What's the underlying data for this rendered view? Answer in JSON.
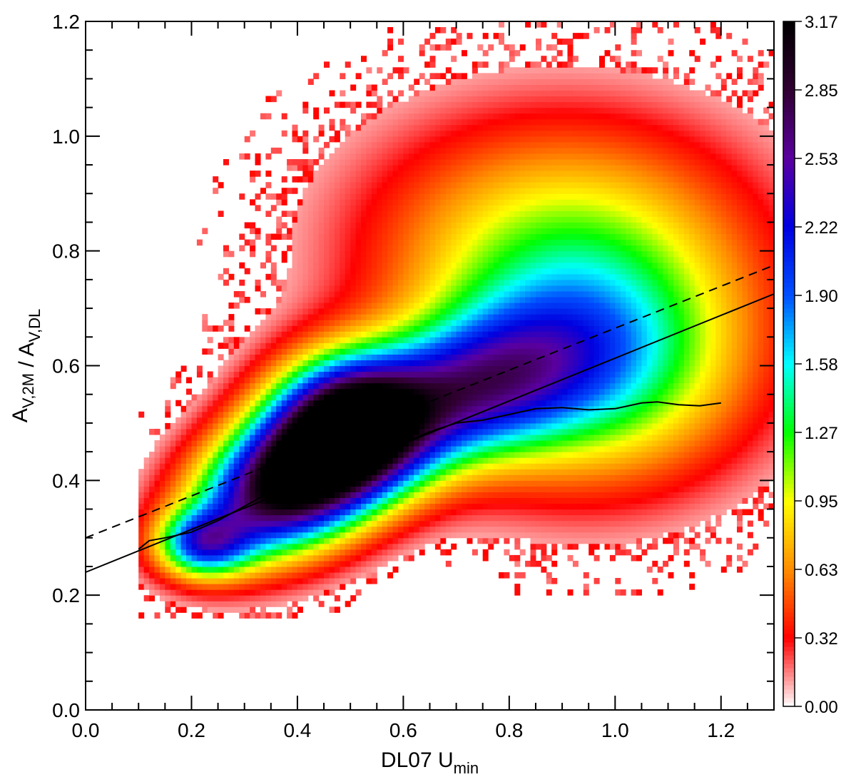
{
  "chart_data": {
    "type": "heatmap",
    "title": "",
    "xlabel": "DL07 U",
    "xlabel_sub": "min",
    "ylabel_parts": [
      {
        "text": "A",
        "sub": "V,2M"
      },
      {
        "text": " / A",
        "sub": "V,DL"
      }
    ],
    "xlim": [
      0.0,
      1.3
    ],
    "ylim": [
      0.0,
      1.2
    ],
    "x_ticks": [
      "0.0",
      "0.2",
      "0.4",
      "0.6",
      "0.8",
      "1.0",
      "1.2"
    ],
    "x_tick_values": [
      0.0,
      0.2,
      0.4,
      0.6,
      0.8,
      1.0,
      1.2
    ],
    "y_ticks": [
      "0.0",
      "0.2",
      "0.4",
      "0.6",
      "0.8",
      "1.0",
      "1.2"
    ],
    "y_tick_values": [
      0.0,
      0.2,
      0.4,
      0.6,
      0.8,
      1.0,
      1.2
    ],
    "colorbar": {
      "range": [
        0.0,
        3.17
      ],
      "tick_labels": [
        "0.00",
        "0.32",
        "0.63",
        "0.95",
        "1.27",
        "1.58",
        "1.90",
        "2.22",
        "2.53",
        "2.85",
        "3.17"
      ],
      "colormap": [
        "#ffffff",
        "#ff0000",
        "#ff8c00",
        "#ffff00",
        "#00ff00",
        "#00ffff",
        "#0050ff",
        "#0000e0",
        "#5a00a0",
        "#300030",
        "#000000"
      ]
    },
    "density_features": [
      {
        "x": 0.385,
        "y": 0.395,
        "sx": 0.12,
        "sy": 0.085,
        "peak": 3.17,
        "rho": 0.3
      },
      {
        "x": 0.5,
        "y": 0.5,
        "sx": 0.1,
        "sy": 0.08,
        "peak": 2.5,
        "rho": 0.0
      },
      {
        "x": 0.7,
        "y": 0.55,
        "sx": 0.16,
        "sy": 0.09,
        "peak": 1.8,
        "rho": 0.35
      },
      {
        "x": 0.95,
        "y": 0.6,
        "sx": 0.2,
        "sy": 0.14,
        "peak": 1.4,
        "rho": 0.0
      },
      {
        "x": 0.9,
        "y": 0.82,
        "sx": 0.25,
        "sy": 0.15,
        "peak": 0.9,
        "rho": 0.0
      },
      {
        "x": 0.22,
        "y": 0.29,
        "sx": 0.06,
        "sy": 0.04,
        "peak": 1.6,
        "rho": 0.0
      }
    ],
    "series": [
      {
        "style": "dashed",
        "x": [
          0.0,
          1.3
        ],
        "y": [
          0.3,
          0.775
        ]
      },
      {
        "style": "solid",
        "x": [
          0.0,
          1.3
        ],
        "y": [
          0.24,
          0.725
        ]
      },
      {
        "style": "solid",
        "x": [
          0.1,
          0.12,
          0.15,
          0.2,
          0.25,
          0.3,
          0.35,
          0.4,
          0.45,
          0.5,
          0.55,
          0.6,
          0.65,
          0.7,
          0.75,
          0.8,
          0.85,
          0.9,
          0.95,
          1.0,
          1.05,
          1.08,
          1.12,
          1.16,
          1.2
        ],
        "y": [
          0.28,
          0.295,
          0.3,
          0.31,
          0.33,
          0.355,
          0.38,
          0.4,
          0.42,
          0.44,
          0.45,
          0.465,
          0.485,
          0.5,
          0.505,
          0.515,
          0.525,
          0.527,
          0.523,
          0.525,
          0.535,
          0.537,
          0.532,
          0.53,
          0.535
        ]
      }
    ]
  }
}
